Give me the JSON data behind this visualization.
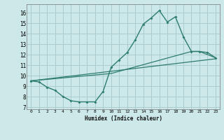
{
  "xlabel": "Humidex (Indice chaleur)",
  "bg_color": "#cce8e8",
  "grid_color": "#aacccc",
  "line_color": "#2d7d6e",
  "xlim": [
    -0.5,
    23.5
  ],
  "ylim": [
    6.8,
    16.8
  ],
  "xticks": [
    0,
    1,
    2,
    3,
    4,
    5,
    6,
    7,
    8,
    9,
    10,
    11,
    12,
    13,
    14,
    15,
    16,
    17,
    18,
    19,
    20,
    21,
    22,
    23
  ],
  "yticks": [
    7,
    8,
    9,
    10,
    11,
    12,
    13,
    14,
    15,
    16
  ],
  "line1_x": [
    0,
    1,
    2,
    3,
    4,
    5,
    6,
    7,
    8,
    9,
    10,
    11,
    12,
    13,
    14,
    15,
    16,
    17,
    18,
    19,
    20,
    21,
    22,
    23
  ],
  "line1_y": [
    9.5,
    9.4,
    8.9,
    8.6,
    8.0,
    7.6,
    7.5,
    7.5,
    7.5,
    8.5,
    10.8,
    11.5,
    12.2,
    13.4,
    14.9,
    15.5,
    16.2,
    15.1,
    15.6,
    13.7,
    12.3,
    12.3,
    12.2,
    11.7
  ],
  "line2_x": [
    0,
    10,
    20,
    21,
    23
  ],
  "line2_y": [
    9.5,
    10.2,
    12.3,
    12.3,
    11.7
  ],
  "line3_x": [
    0,
    23
  ],
  "line3_y": [
    9.5,
    11.6
  ]
}
